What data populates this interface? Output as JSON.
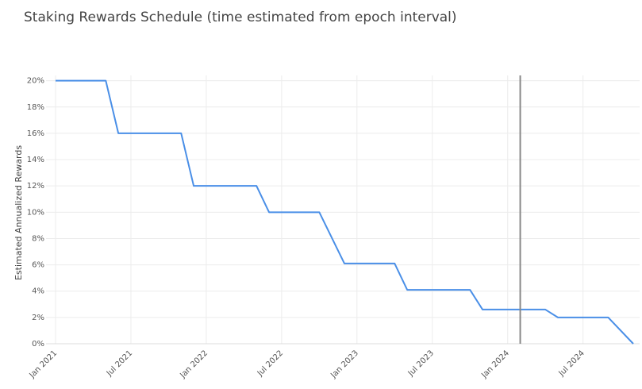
{
  "chart_data": {
    "type": "line",
    "title": "Staking Rewards Schedule (time estimated from epoch interval)",
    "y_label": "Estimated Annualized Rewards",
    "x": [
      "2021-01",
      "2021-05",
      "2021-06",
      "2021-11",
      "2021-12",
      "2022-05",
      "2022-06",
      "2022-10",
      "2022-12",
      "2023-04",
      "2023-05",
      "2023-10",
      "2023-11",
      "2024-04",
      "2024-05",
      "2024-09",
      "2024-11"
    ],
    "series": [
      {
        "name": "Estimated Annualized Rewards",
        "color": "#4a8fe7",
        "values": [
          20,
          20,
          16,
          16,
          12,
          12,
          10,
          10,
          6.1,
          6.1,
          4.1,
          4.1,
          2.6,
          2.6,
          2,
          2,
          0
        ]
      }
    ],
    "xlim": [
      "2021-01",
      "2024-11"
    ],
    "xticks": [
      {
        "value": "2021-01",
        "label": "Jan 2021"
      },
      {
        "value": "2021-07",
        "label": "Jul 2021"
      },
      {
        "value": "2022-01",
        "label": "Jan 2022"
      },
      {
        "value": "2022-07",
        "label": "Jul 2022"
      },
      {
        "value": "2023-01",
        "label": "Jan 2023"
      },
      {
        "value": "2023-07",
        "label": "Jul 2023"
      },
      {
        "value": "2024-01",
        "label": "Jan 2024"
      },
      {
        "value": "2024-07",
        "label": "Jul 2024"
      }
    ],
    "ylim": [
      0,
      20.4
    ],
    "yticks": [
      {
        "value": 0,
        "label": "0%"
      },
      {
        "value": 2,
        "label": "2%"
      },
      {
        "value": 4,
        "label": "4%"
      },
      {
        "value": 6,
        "label": "6%"
      },
      {
        "value": 8,
        "label": "8%"
      },
      {
        "value": 10,
        "label": "10%"
      },
      {
        "value": 12,
        "label": "12%"
      },
      {
        "value": 14,
        "label": "14%"
      },
      {
        "value": 16,
        "label": "16%"
      },
      {
        "value": 18,
        "label": "18%"
      },
      {
        "value": 20,
        "label": "20%"
      }
    ],
    "grid": true,
    "marker_x": "2024-02"
  }
}
